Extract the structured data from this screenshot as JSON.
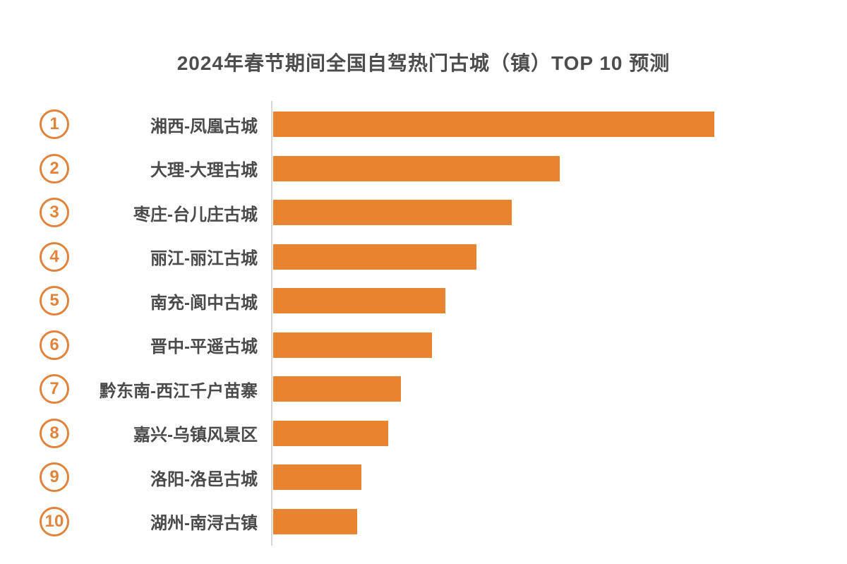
{
  "title": "2024年春节期间全国自驾热门古城（镇）TOP 10 预测",
  "colors": {
    "background": "#ffffff",
    "bar": "#E8842F",
    "badge": "#E2833B",
    "title_text": "#4D4D4D",
    "label_text": "#4A4A4A",
    "axis_line": "#D8D8D8"
  },
  "chart_data": {
    "type": "bar",
    "orientation": "horizontal",
    "title": "2024年春节期间全国自驾热门古城（镇）TOP 10 预测",
    "xlabel": "",
    "ylabel": "",
    "grid": false,
    "legend": false,
    "value_axis_labels_shown": false,
    "xlim": [
      0,
      100
    ],
    "ranks": [
      "1",
      "2",
      "3",
      "4",
      "5",
      "6",
      "7",
      "8",
      "9",
      "10"
    ],
    "categories": [
      "湘西-凤凰古城",
      "大理-大理古城",
      "枣庄-台儿庄古城",
      "丽江-丽江古城",
      "南充-阆中古城",
      "晋中-平遥古城",
      "黔东南-西江千户苗寨",
      "嘉兴-乌镇风景区",
      "洛阳-洛邑古城",
      "湖州-南浔古镇"
    ],
    "values": [
      100,
      65,
      54,
      46,
      39,
      36,
      29,
      26,
      20,
      19
    ]
  }
}
